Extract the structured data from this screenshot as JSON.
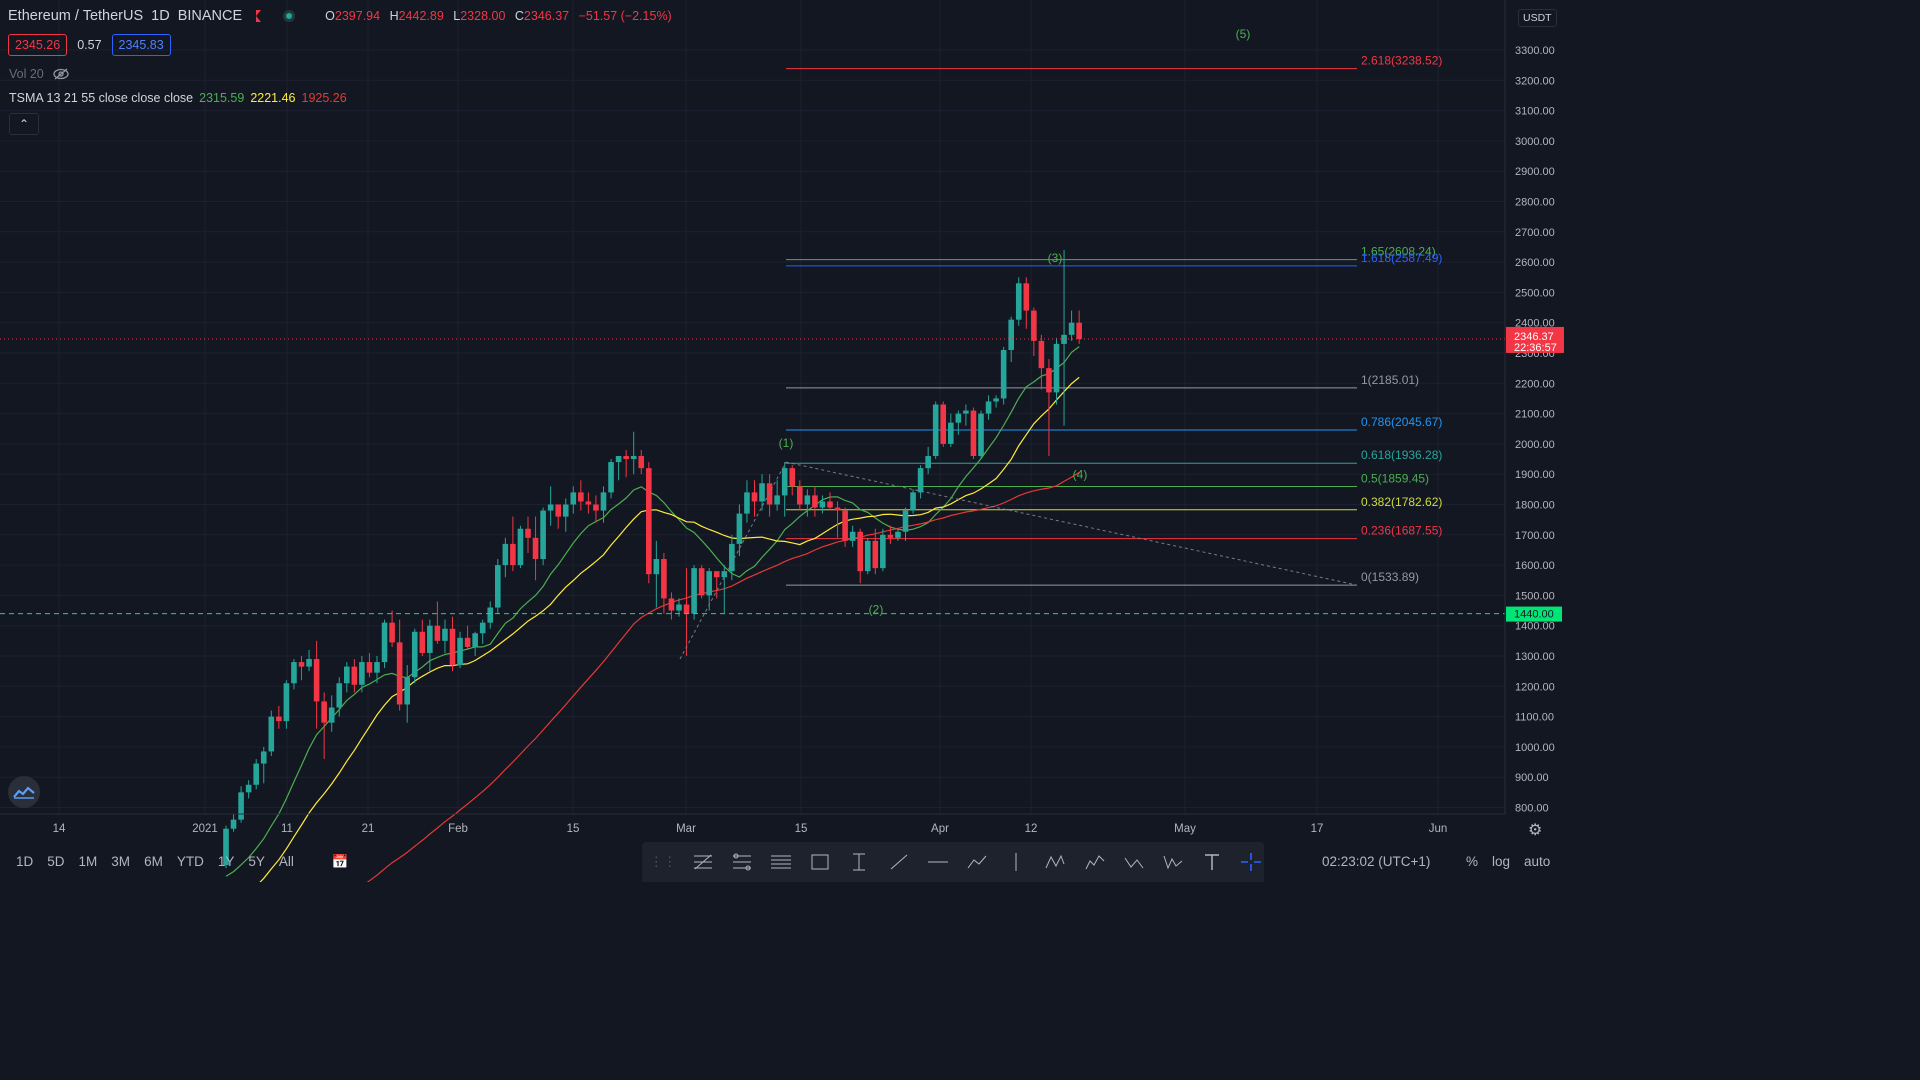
{
  "header": {
    "symbol": "Ethereum / TetherUS",
    "interval": "1D",
    "exchange": "BINANCE",
    "ohlc": {
      "o_label": "O",
      "o": "2397.94",
      "h_label": "H",
      "h": "2442.89",
      "l_label": "L",
      "l": "2328.00",
      "c_label": "C",
      "c": "2346.37",
      "change": "−51.57 (−2.15%)"
    }
  },
  "quote": {
    "sell": "2345.26",
    "spread": "0.57",
    "buy": "2345.83"
  },
  "volume": {
    "label": "Vol 20"
  },
  "tsma": {
    "label": "TSMA 13 21 55 close close close",
    "v13": "2315.59",
    "v21": "2221.46",
    "v55": "1925.26"
  },
  "price_scale": {
    "currency": "USDT",
    "ticks": [
      "3300.00",
      "3200.00",
      "3100.00",
      "3000.00",
      "2900.00",
      "2800.00",
      "2700.00",
      "2600.00",
      "2500.00",
      "2400.00",
      "2300.00",
      "2200.00",
      "2100.00",
      "2000.00",
      "1900.00",
      "1800.00",
      "1700.00",
      "1600.00",
      "1500.00",
      "1400.00",
      "1300.00",
      "1200.00",
      "1100.00",
      "1000.00",
      "900.00",
      "800.00"
    ],
    "last_price": "2346.37",
    "countdown": "22:36:57",
    "alert_level": "1440.00"
  },
  "time_scale": [
    "14",
    "2021",
    "11",
    "21",
    "Feb",
    "15",
    "Mar",
    "15",
    "Apr",
    "12",
    "May",
    "17",
    "Jun"
  ],
  "fib_levels": [
    {
      "label": "2.618(3238.52)",
      "color": "#f23645"
    },
    {
      "label": "1.65(2608.24)",
      "color": "#4caf50"
    },
    {
      "label": "1.618(2587.49)",
      "color": "#2962ff"
    },
    {
      "label": "1(2185.01)",
      "color": "#9598a1"
    },
    {
      "label": "0.786(2045.67)",
      "color": "#2196f3"
    },
    {
      "label": "0.618(1936.28)",
      "color": "#26a69a"
    },
    {
      "label": "0.5(1859.45)",
      "color": "#4caf50"
    },
    {
      "label": "0.382(1782.62)",
      "color": "#cddc39"
    },
    {
      "label": "0.236(1687.55)",
      "color": "#f23645"
    },
    {
      "label": "0(1533.89)",
      "color": "#9598a1"
    }
  ],
  "waves": [
    "(1)",
    "(2)",
    "(3)",
    "(4)",
    "(5)"
  ],
  "bottom": {
    "ranges": [
      "1D",
      "5D",
      "1M",
      "3M",
      "6M",
      "YTD",
      "1Y",
      "5Y",
      "All"
    ],
    "clock": "02:23:02 (UTC+1)",
    "scale_opts": [
      "%",
      "log",
      "auto"
    ]
  },
  "colors": {
    "up": "#26a69a",
    "down": "#f23645",
    "bg": "#131722",
    "ma13": "#4caf50",
    "ma21": "#ffeb3b",
    "ma55": "#e53935"
  },
  "chart_data": {
    "type": "candlestick",
    "x_start": "2020-12-24",
    "candles": [
      [
        610,
        740,
        600,
        730
      ],
      [
        730,
        780,
        720,
        760
      ],
      [
        760,
        870,
        750,
        850
      ],
      [
        850,
        890,
        830,
        875
      ],
      [
        875,
        960,
        860,
        945
      ],
      [
        945,
        1000,
        880,
        985
      ],
      [
        985,
        1120,
        970,
        1100
      ],
      [
        1100,
        1135,
        1060,
        1085
      ],
      [
        1085,
        1220,
        1060,
        1210
      ],
      [
        1210,
        1290,
        1190,
        1280
      ],
      [
        1280,
        1300,
        1220,
        1265
      ],
      [
        1265,
        1320,
        1250,
        1290
      ],
      [
        1290,
        1350,
        1060,
        1150
      ],
      [
        1150,
        1180,
        960,
        1080
      ],
      [
        1080,
        1170,
        1050,
        1130
      ],
      [
        1130,
        1230,
        1100,
        1210
      ],
      [
        1210,
        1280,
        1180,
        1265
      ],
      [
        1265,
        1290,
        1180,
        1205
      ],
      [
        1205,
        1300,
        1180,
        1280
      ],
      [
        1280,
        1310,
        1230,
        1245
      ],
      [
        1245,
        1300,
        1210,
        1280
      ],
      [
        1280,
        1420,
        1260,
        1410
      ],
      [
        1410,
        1450,
        1330,
        1345
      ],
      [
        1345,
        1420,
        1120,
        1140
      ],
      [
        1140,
        1270,
        1080,
        1230
      ],
      [
        1230,
        1390,
        1210,
        1380
      ],
      [
        1380,
        1420,
        1300,
        1310
      ],
      [
        1310,
        1420,
        1250,
        1400
      ],
      [
        1400,
        1480,
        1340,
        1350
      ],
      [
        1350,
        1420,
        1310,
        1390
      ],
      [
        1390,
        1430,
        1250,
        1270
      ],
      [
        1270,
        1380,
        1260,
        1360
      ],
      [
        1360,
        1400,
        1320,
        1330
      ],
      [
        1330,
        1380,
        1300,
        1375
      ],
      [
        1375,
        1420,
        1340,
        1410
      ],
      [
        1410,
        1480,
        1390,
        1460
      ],
      [
        1460,
        1620,
        1440,
        1600
      ],
      [
        1600,
        1690,
        1560,
        1670
      ],
      [
        1670,
        1760,
        1580,
        1600
      ],
      [
        1600,
        1730,
        1590,
        1720
      ],
      [
        1720,
        1760,
        1640,
        1690
      ],
      [
        1690,
        1760,
        1550,
        1620
      ],
      [
        1620,
        1790,
        1600,
        1780
      ],
      [
        1780,
        1860,
        1730,
        1800
      ],
      [
        1800,
        1800,
        1720,
        1760
      ],
      [
        1760,
        1820,
        1710,
        1800
      ],
      [
        1800,
        1860,
        1770,
        1840
      ],
      [
        1840,
        1880,
        1780,
        1810
      ],
      [
        1810,
        1840,
        1770,
        1800
      ],
      [
        1800,
        1830,
        1740,
        1780
      ],
      [
        1780,
        1860,
        1740,
        1840
      ],
      [
        1840,
        1950,
        1820,
        1940
      ],
      [
        1940,
        1960,
        1880,
        1960
      ],
      [
        1960,
        1980,
        1890,
        1950
      ],
      [
        1950,
        2040,
        1900,
        1960
      ],
      [
        1960,
        1980,
        1900,
        1920
      ],
      [
        1920,
        1940,
        1540,
        1570
      ],
      [
        1570,
        1680,
        1460,
        1620
      ],
      [
        1620,
        1640,
        1440,
        1490
      ],
      [
        1490,
        1510,
        1420,
        1450
      ],
      [
        1450,
        1490,
        1430,
        1470
      ],
      [
        1470,
        1590,
        1300,
        1440
      ],
      [
        1440,
        1600,
        1420,
        1590
      ],
      [
        1590,
        1600,
        1490,
        1500
      ],
      [
        1500,
        1590,
        1450,
        1580
      ],
      [
        1580,
        1580,
        1490,
        1560
      ],
      [
        1560,
        1600,
        1440,
        1580
      ],
      [
        1580,
        1700,
        1550,
        1670
      ],
      [
        1670,
        1800,
        1630,
        1770
      ],
      [
        1770,
        1880,
        1740,
        1840
      ],
      [
        1840,
        1880,
        1760,
        1810
      ],
      [
        1810,
        1900,
        1780,
        1870
      ],
      [
        1870,
        1900,
        1760,
        1800
      ],
      [
        1800,
        1880,
        1780,
        1830
      ],
      [
        1830,
        1940,
        1760,
        1920
      ],
      [
        1920,
        1930,
        1830,
        1860
      ],
      [
        1860,
        1880,
        1780,
        1800
      ],
      [
        1800,
        1850,
        1760,
        1830
      ],
      [
        1830,
        1860,
        1760,
        1790
      ],
      [
        1790,
        1830,
        1770,
        1810
      ],
      [
        1810,
        1840,
        1780,
        1790
      ],
      [
        1790,
        1810,
        1690,
        1780
      ],
      [
        1780,
        1790,
        1660,
        1680
      ],
      [
        1680,
        1730,
        1660,
        1710
      ],
      [
        1710,
        1720,
        1540,
        1580
      ],
      [
        1580,
        1690,
        1570,
        1680
      ],
      [
        1680,
        1720,
        1570,
        1590
      ],
      [
        1590,
        1720,
        1580,
        1700
      ],
      [
        1700,
        1730,
        1670,
        1690
      ],
      [
        1690,
        1720,
        1680,
        1710
      ],
      [
        1710,
        1790,
        1680,
        1780
      ],
      [
        1780,
        1850,
        1770,
        1840
      ],
      [
        1840,
        1930,
        1820,
        1920
      ],
      [
        1920,
        1990,
        1900,
        1960
      ],
      [
        1960,
        2140,
        1950,
        2130
      ],
      [
        2130,
        2140,
        1990,
        2000
      ],
      [
        2000,
        2100,
        1990,
        2070
      ],
      [
        2070,
        2110,
        2030,
        2100
      ],
      [
        2100,
        2130,
        2060,
        2110
      ],
      [
        2110,
        2120,
        1950,
        1960
      ],
      [
        1960,
        2110,
        1950,
        2100
      ],
      [
        2100,
        2160,
        2080,
        2140
      ],
      [
        2140,
        2160,
        2120,
        2150
      ],
      [
        2150,
        2320,
        2130,
        2310
      ],
      [
        2310,
        2420,
        2270,
        2410
      ],
      [
        2410,
        2550,
        2390,
        2530
      ],
      [
        2530,
        2550,
        2380,
        2440
      ],
      [
        2440,
        2450,
        2290,
        2340
      ],
      [
        2340,
        2360,
        2180,
        2250
      ],
      [
        2250,
        2280,
        1960,
        2170
      ],
      [
        2170,
        2350,
        2130,
        2330
      ],
      [
        2330,
        2640,
        2060,
        2360
      ],
      [
        2360,
        2440,
        2340,
        2400
      ],
      [
        2400,
        2440,
        2330,
        2346
      ]
    ]
  }
}
